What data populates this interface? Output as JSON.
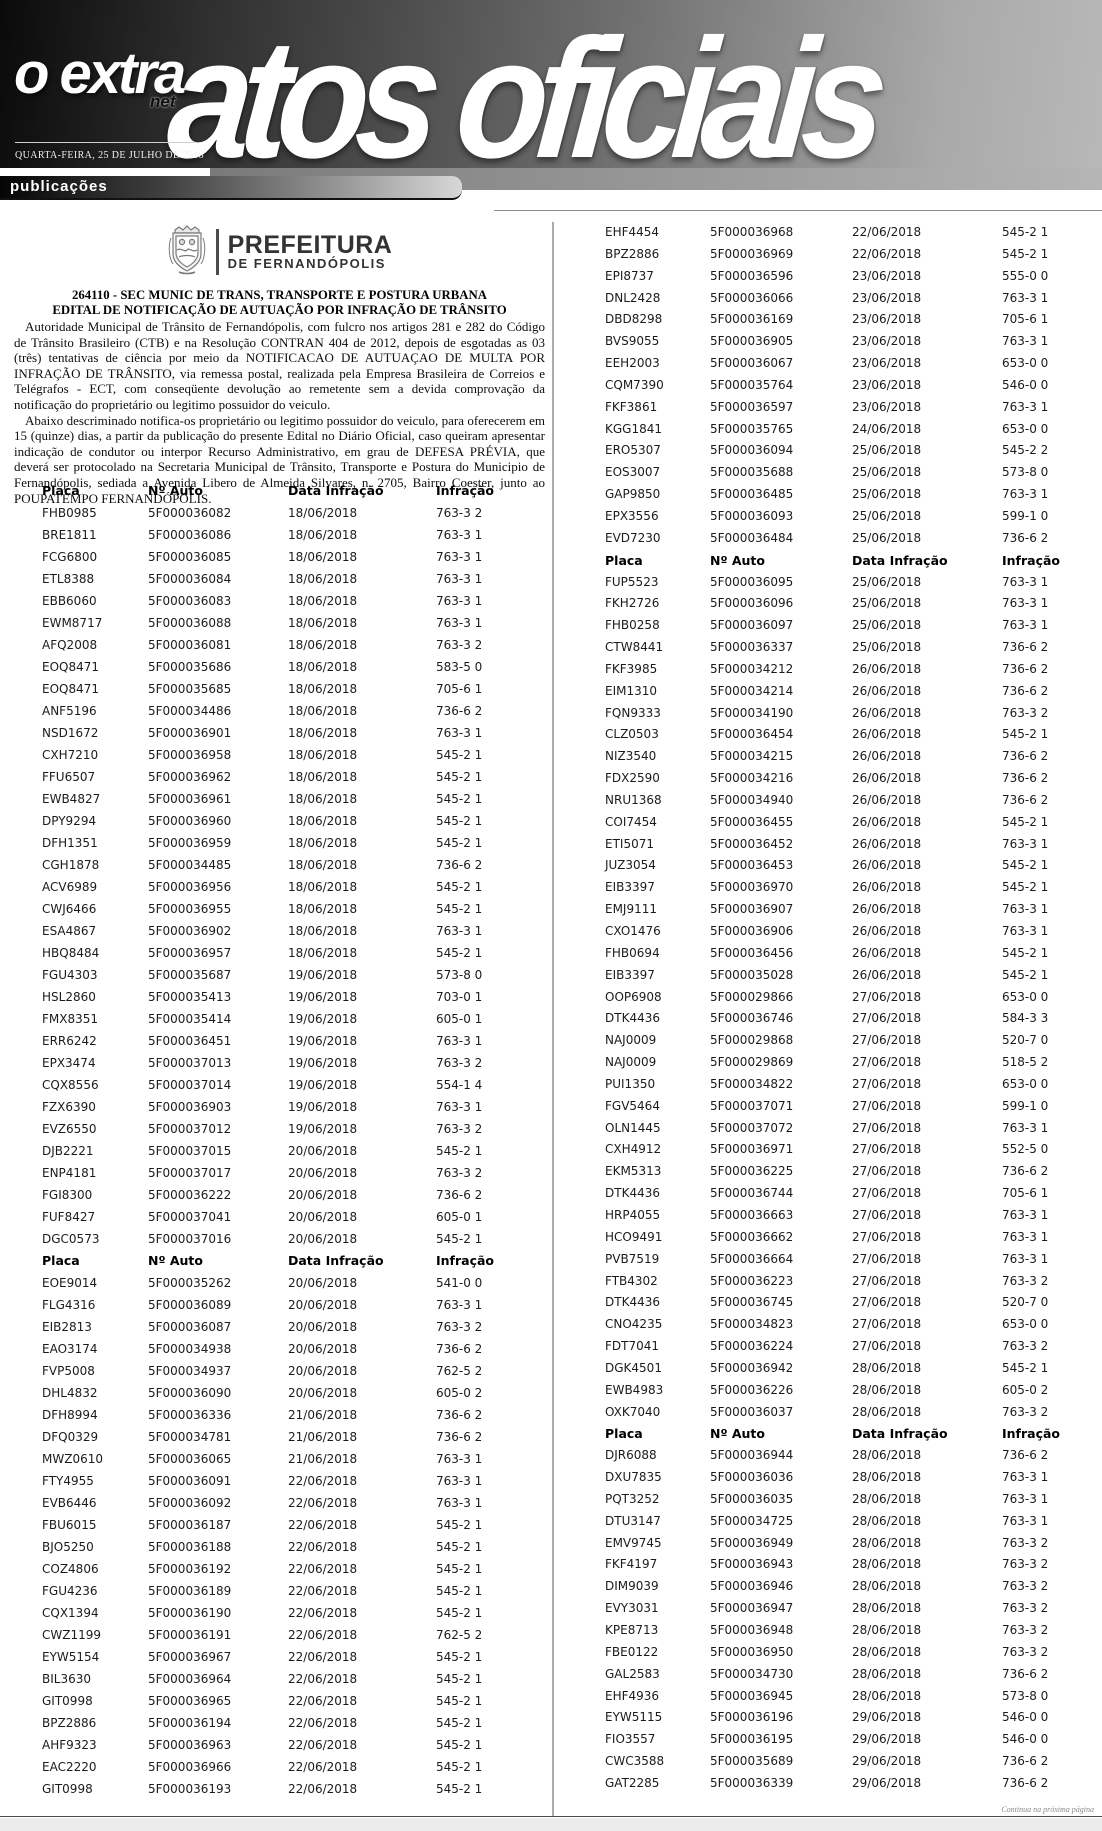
{
  "masthead": {
    "logo_main": "o extra",
    "logo_sub": "net",
    "date": "QUARTA-FEIRA, 25 DE JULHO DE 2018",
    "title": "atos oficiais",
    "section_tab": "publicações"
  },
  "notice": {
    "org_name": "PREFEITURA",
    "org_subname": "DE FERNANDÓPOLIS",
    "title_line1": "264110 - SEC MUNIC DE TRANS, TRANSPORTE E POSTURA URBANA",
    "title_line2": "EDITAL DE NOTIFICAÇÃO DE AUTUAÇÃO POR INFRAÇÃO DE TRÂNSITO",
    "paragraph1": "Autoridade Municipal de Trânsito de Fernandópolis, com fulcro nos artigos 281 e 282 do Código de Trânsito Brasileiro (CTB) e na Resolução CONTRAN 404 de 2012, depois de esgotadas as 03 (três) tentativas de ciência por meio da NOTIFICACAO DE AUTUAÇAO DE MULTA POR INFRAÇÃO DE TRÂNSITO, via remessa postal, realizada pela Empresa Brasileira de Correios e Telégrafos - ECT, com conseqüente devolução ao remetente sem a devida comprovação da notificação do proprietário ou legitimo possuidor do veiculo.",
    "paragraph2": "Abaixo descriminado notifica-os proprietário ou legitimo possuidor do veiculo, para oferecerem em 15 (quinze) dias, a partir da publicação do presente Edital no Diário Oficial, caso queiram apresentar indicação de condutor ou interpor Recurso Administrativo, em grau de DEFESA PRÉVIA, que deverá ser protocolado na Secretaria Municipal de Trânsito, Transporte e Postura do Municipio de Fernandópolis, sediada a Avenida Libero de Almeida Silvares, n. 2705, Bairro Coester, junto ao POUPATEMPO FERNANDÓPOLIS."
  },
  "tables": {
    "headers": [
      "Placa",
      "Nº Auto",
      "Data Infração",
      "Infração"
    ],
    "left": [
      "H",
      [
        "FHB0985",
        "5F000036082",
        "18/06/2018",
        "763-3 2"
      ],
      [
        "BRE1811",
        "5F000036086",
        "18/06/2018",
        "763-3 1"
      ],
      [
        "FCG6800",
        "5F000036085",
        "18/06/2018",
        "763-3 1"
      ],
      [
        "ETL8388",
        "5F000036084",
        "18/06/2018",
        "763-3 1"
      ],
      [
        "EBB6060",
        "5F000036083",
        "18/06/2018",
        "763-3 1"
      ],
      [
        "EWM8717",
        "5F000036088",
        "18/06/2018",
        "763-3 1"
      ],
      [
        "AFQ2008",
        "5F000036081",
        "18/06/2018",
        "763-3 2"
      ],
      [
        "EOQ8471",
        "5F000035686",
        "18/06/2018",
        "583-5 0"
      ],
      [
        "EOQ8471",
        "5F000035685",
        "18/06/2018",
        "705-6 1"
      ],
      [
        "ANF5196",
        "5F000034486",
        "18/06/2018",
        "736-6 2"
      ],
      [
        "NSD1672",
        "5F000036901",
        "18/06/2018",
        "763-3 1"
      ],
      [
        "CXH7210",
        "5F000036958",
        "18/06/2018",
        "545-2 1"
      ],
      [
        "FFU6507",
        "5F000036962",
        "18/06/2018",
        "545-2 1"
      ],
      [
        "EWB4827",
        "5F000036961",
        "18/06/2018",
        "545-2 1"
      ],
      [
        "DPY9294",
        "5F000036960",
        "18/06/2018",
        "545-2 1"
      ],
      [
        "DFH1351",
        "5F000036959",
        "18/06/2018",
        "545-2 1"
      ],
      [
        "CGH1878",
        "5F000034485",
        "18/06/2018",
        "736-6 2"
      ],
      [
        "ACV6989",
        "5F000036956",
        "18/06/2018",
        "545-2 1"
      ],
      [
        "CWJ6466",
        "5F000036955",
        "18/06/2018",
        "545-2 1"
      ],
      [
        "ESA4867",
        "5F000036902",
        "18/06/2018",
        "763-3 1"
      ],
      [
        "HBQ8484",
        "5F000036957",
        "18/06/2018",
        "545-2 1"
      ],
      [
        "FGU4303",
        "5F000035687",
        "19/06/2018",
        "573-8 0"
      ],
      [
        "HSL2860",
        "5F000035413",
        "19/06/2018",
        "703-0 1"
      ],
      [
        "FMX8351",
        "5F000035414",
        "19/06/2018",
        "605-0 1"
      ],
      [
        "ERR6242",
        "5F000036451",
        "19/06/2018",
        "763-3 1"
      ],
      [
        "EPX3474",
        "5F000037013",
        "19/06/2018",
        "763-3 2"
      ],
      [
        "CQX8556",
        "5F000037014",
        "19/06/2018",
        "554-1 4"
      ],
      [
        "FZX6390",
        "5F000036903",
        "19/06/2018",
        "763-3 1"
      ],
      [
        "EVZ6550",
        "5F000037012",
        "19/06/2018",
        "763-3 2"
      ],
      [
        "DJB2221",
        "5F000037015",
        "20/06/2018",
        "545-2 1"
      ],
      [
        "ENP4181",
        "5F000037017",
        "20/06/2018",
        "763-3 2"
      ],
      [
        "FGI8300",
        "5F000036222",
        "20/06/2018",
        "736-6 2"
      ],
      [
        "FUF8427",
        "5F000037041",
        "20/06/2018",
        "605-0 1"
      ],
      [
        "DGC0573",
        "5F000037016",
        "20/06/2018",
        "545-2 1"
      ],
      "H",
      [
        "EOE9014",
        "5F000035262",
        "20/06/2018",
        "541-0 0"
      ],
      [
        "FLG4316",
        "5F000036089",
        "20/06/2018",
        "763-3 1"
      ],
      [
        "EIB2813",
        "5F000036087",
        "20/06/2018",
        "763-3 2"
      ],
      [
        "EAO3174",
        "5F000034938",
        "20/06/2018",
        "736-6 2"
      ],
      [
        "FVP5008",
        "5F000034937",
        "20/06/2018",
        "762-5 2"
      ],
      [
        "DHL4832",
        "5F000036090",
        "20/06/2018",
        "605-0 2"
      ],
      [
        "DFH8994",
        "5F000036336",
        "21/06/2018",
        "736-6 2"
      ],
      [
        "DFQ0329",
        "5F000034781",
        "21/06/2018",
        "736-6 2"
      ],
      [
        "MWZ0610",
        "5F000036065",
        "21/06/2018",
        "763-3 1"
      ],
      [
        "FTY4955",
        "5F000036091",
        "22/06/2018",
        "763-3 1"
      ],
      [
        "EVB6446",
        "5F000036092",
        "22/06/2018",
        "763-3 1"
      ],
      [
        "FBU6015",
        "5F000036187",
        "22/06/2018",
        "545-2 1"
      ],
      [
        "BJO5250",
        "5F000036188",
        "22/06/2018",
        "545-2 1"
      ],
      [
        "COZ4806",
        "5F000036192",
        "22/06/2018",
        "545-2 1"
      ],
      [
        "FGU4236",
        "5F000036189",
        "22/06/2018",
        "545-2 1"
      ],
      [
        "CQX1394",
        "5F000036190",
        "22/06/2018",
        "545-2 1"
      ],
      [
        "CWZ1199",
        "5F000036191",
        "22/06/2018",
        "762-5 2"
      ],
      [
        "EYW5154",
        "5F000036967",
        "22/06/2018",
        "545-2 1"
      ],
      [
        "BIL3630",
        "5F000036964",
        "22/06/2018",
        "545-2 1"
      ],
      [
        "GIT0998",
        "5F000036965",
        "22/06/2018",
        "545-2 1"
      ],
      [
        "BPZ2886",
        "5F000036194",
        "22/06/2018",
        "545-2 1"
      ],
      [
        "AHF9323",
        "5F000036963",
        "22/06/2018",
        "545-2 1"
      ],
      [
        "EAC2220",
        "5F000036966",
        "22/06/2018",
        "545-2 1"
      ],
      [
        "GIT0998",
        "5F000036193",
        "22/06/2018",
        "545-2 1"
      ]
    ],
    "right": [
      [
        "EHF4454",
        "5F000036968",
        "22/06/2018",
        "545-2 1"
      ],
      [
        "BPZ2886",
        "5F000036969",
        "22/06/2018",
        "545-2 1"
      ],
      [
        "EPI8737",
        "5F000036596",
        "23/06/2018",
        "555-0 0"
      ],
      [
        "DNL2428",
        "5F000036066",
        "23/06/2018",
        "763-3 1"
      ],
      [
        "DBD8298",
        "5F000036169",
        "23/06/2018",
        "705-6 1"
      ],
      [
        "BVS9055",
        "5F000036905",
        "23/06/2018",
        "763-3 1"
      ],
      [
        "EEH2003",
        "5F000036067",
        "23/06/2018",
        "653-0 0"
      ],
      [
        "CQM7390",
        "5F000035764",
        "23/06/2018",
        "546-0 0"
      ],
      [
        "FKF3861",
        "5F000036597",
        "23/06/2018",
        "763-3 1"
      ],
      [
        "KGG1841",
        "5F000035765",
        "24/06/2018",
        "653-0 0"
      ],
      [
        "ERO5307",
        "5F000036094",
        "25/06/2018",
        "545-2 2"
      ],
      [
        "EOS3007",
        "5F000035688",
        "25/06/2018",
        "573-8 0"
      ],
      [
        "GAP9850",
        "5F000036485",
        "25/06/2018",
        "763-3 1"
      ],
      [
        "EPX3556",
        "5F000036093",
        "25/06/2018",
        "599-1 0"
      ],
      [
        "EVD7230",
        "5F000036484",
        "25/06/2018",
        "736-6 2"
      ],
      "H",
      [
        "FUP5523",
        "5F000036095",
        "25/06/2018",
        "763-3 1"
      ],
      [
        "FKH2726",
        "5F000036096",
        "25/06/2018",
        "763-3 1"
      ],
      [
        "FHB0258",
        "5F000036097",
        "25/06/2018",
        "763-3 1"
      ],
      [
        "CTW8441",
        "5F000036337",
        "25/06/2018",
        "736-6 2"
      ],
      [
        "FKF3985",
        "5F000034212",
        "26/06/2018",
        "736-6 2"
      ],
      [
        "EIM1310",
        "5F000034214",
        "26/06/2018",
        "736-6 2"
      ],
      [
        "FQN9333",
        "5F000034190",
        "26/06/2018",
        "763-3 2"
      ],
      [
        "CLZ0503",
        "5F000036454",
        "26/06/2018",
        "545-2 1"
      ],
      [
        "NIZ3540",
        "5F000034215",
        "26/06/2018",
        "736-6 2"
      ],
      [
        "FDX2590",
        "5F000034216",
        "26/06/2018",
        "736-6 2"
      ],
      [
        "NRU1368",
        "5F000034940",
        "26/06/2018",
        "736-6 2"
      ],
      [
        "COI7454",
        "5F000036455",
        "26/06/2018",
        "545-2 1"
      ],
      [
        "ETI5071",
        "5F000036452",
        "26/06/2018",
        "763-3 1"
      ],
      [
        "JUZ3054",
        "5F000036453",
        "26/06/2018",
        "545-2 1"
      ],
      [
        "EIB3397",
        "5F000036970",
        "26/06/2018",
        "545-2 1"
      ],
      [
        "EMJ9111",
        "5F000036907",
        "26/06/2018",
        "763-3 1"
      ],
      [
        "CXO1476",
        "5F000036906",
        "26/06/2018",
        "763-3 1"
      ],
      [
        "FHB0694",
        "5F000036456",
        "26/06/2018",
        "545-2 1"
      ],
      [
        "EIB3397",
        "5F000035028",
        "26/06/2018",
        "545-2 1"
      ],
      [
        "OOP6908",
        "5F000029866",
        "27/06/2018",
        "653-0 0"
      ],
      [
        "DTK4436",
        "5F000036746",
        "27/06/2018",
        "584-3 3"
      ],
      [
        "NAJ0009",
        "5F000029868",
        "27/06/2018",
        "520-7 0"
      ],
      [
        "NAJ0009",
        "5F000029869",
        "27/06/2018",
        "518-5 2"
      ],
      [
        "PUI1350",
        "5F000034822",
        "27/06/2018",
        "653-0 0"
      ],
      [
        "FGV5464",
        "5F000037071",
        "27/06/2018",
        "599-1 0"
      ],
      [
        "OLN1445",
        "5F000037072",
        "27/06/2018",
        "763-3 1"
      ],
      [
        "CXH4912",
        "5F000036971",
        "27/06/2018",
        "552-5 0"
      ],
      [
        "EKM5313",
        "5F000036225",
        "27/06/2018",
        "736-6 2"
      ],
      [
        "DTK4436",
        "5F000036744",
        "27/06/2018",
        "705-6 1"
      ],
      [
        "HRP4055",
        "5F000036663",
        "27/06/2018",
        "763-3 1"
      ],
      [
        "HCO9491",
        "5F000036662",
        "27/06/2018",
        "763-3 1"
      ],
      [
        "PVB7519",
        "5F000036664",
        "27/06/2018",
        "763-3 1"
      ],
      [
        "FTB4302",
        "5F000036223",
        "27/06/2018",
        "763-3 2"
      ],
      [
        "DTK4436",
        "5F000036745",
        "27/06/2018",
        "520-7 0"
      ],
      [
        "CNO4235",
        "5F000034823",
        "27/06/2018",
        "653-0 0"
      ],
      [
        "FDT7041",
        "5F000036224",
        "27/06/2018",
        "763-3 2"
      ],
      [
        "DGK4501",
        "5F000036942",
        "28/06/2018",
        "545-2 1"
      ],
      [
        "EWB4983",
        "5F000036226",
        "28/06/2018",
        "605-0 2"
      ],
      [
        "OXK7040",
        "5F000036037",
        "28/06/2018",
        "763-3 2"
      ],
      "H",
      [
        "DJR6088",
        "5F000036944",
        "28/06/2018",
        "736-6 2"
      ],
      [
        "DXU7835",
        "5F000036036",
        "28/06/2018",
        "763-3 1"
      ],
      [
        "PQT3252",
        "5F000036035",
        "28/06/2018",
        "763-3 1"
      ],
      [
        "DTU3147",
        "5F000034725",
        "28/06/2018",
        "763-3 1"
      ],
      [
        "EMV9745",
        "5F000036949",
        "28/06/2018",
        "763-3 2"
      ],
      [
        "FKF4197",
        "5F000036943",
        "28/06/2018",
        "763-3 2"
      ],
      [
        "DIM9039",
        "5F000036946",
        "28/06/2018",
        "763-3 2"
      ],
      [
        "EVY3031",
        "5F000036947",
        "28/06/2018",
        "763-3 2"
      ],
      [
        "KPE8713",
        "5F000036948",
        "28/06/2018",
        "763-3 2"
      ],
      [
        "FBE0122",
        "5F000036950",
        "28/06/2018",
        "763-3 2"
      ],
      [
        "GAL2583",
        "5F000034730",
        "28/06/2018",
        "736-6 2"
      ],
      [
        "EHF4936",
        "5F000036945",
        "28/06/2018",
        "573-8 0"
      ],
      [
        "EYW5115",
        "5F000036196",
        "29/06/2018",
        "546-0 0"
      ],
      [
        "FIO3557",
        "5F000036195",
        "29/06/2018",
        "546-0 0"
      ],
      [
        "CWC3588",
        "5F000035689",
        "29/06/2018",
        "736-6 2"
      ],
      [
        "GAT2285",
        "5F000036339",
        "29/06/2018",
        "736-6 2"
      ]
    ]
  },
  "footer": {
    "continuation": "Continua na próxima página"
  },
  "colors": {
    "band_dark": "#0a0a0a",
    "band_light": "#b8b8b8",
    "divider": "#ababab",
    "footer_strip": "#ececec"
  }
}
